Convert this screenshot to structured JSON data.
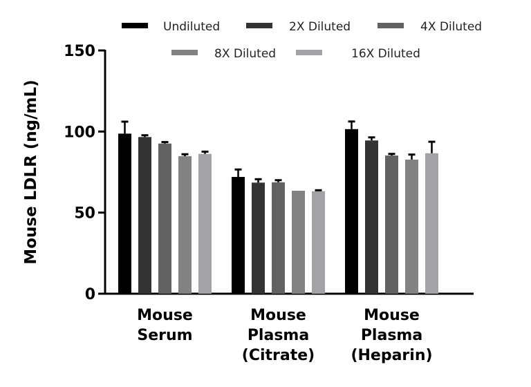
{
  "chart_data": {
    "type": "bar",
    "title": "",
    "xlabel": "",
    "ylabel": "Mouse LDLR (ng/mL)",
    "ylim": [
      0,
      150
    ],
    "yticks": [
      0,
      50,
      100,
      150
    ],
    "grid": false,
    "legend_placement": "top",
    "categories": [
      [
        "Mouse",
        "Serum"
      ],
      [
        "Mouse",
        "Plasma",
        "(Citrate)"
      ],
      [
        "Mouse",
        "Plasma",
        "(Heparin)"
      ]
    ],
    "series": [
      {
        "name": "Undiluted",
        "color": "#000000",
        "values": [
          98.7,
          72.0,
          101.5
        ],
        "errors": [
          7.4,
          4.6,
          4.7
        ]
      },
      {
        "name": "2X Diluted",
        "color": "#333333",
        "values": [
          96.6,
          68.5,
          94.5
        ],
        "errors": [
          1.1,
          2.1,
          1.9
        ]
      },
      {
        "name": "4X Diluted",
        "color": "#626262",
        "values": [
          92.6,
          68.7,
          85.2
        ],
        "errors": [
          0.9,
          1.3,
          1.0
        ]
      },
      {
        "name": "8X Diluted",
        "color": "#828282",
        "values": [
          84.8,
          63.5,
          82.7
        ],
        "errors": [
          1.2,
          0,
          3.1
        ]
      },
      {
        "name": "16X Diluted",
        "color": "#a3a3a5",
        "values": [
          86.2,
          63.2,
          86.6
        ],
        "errors": [
          1.4,
          0.6,
          7.1
        ]
      }
    ]
  }
}
